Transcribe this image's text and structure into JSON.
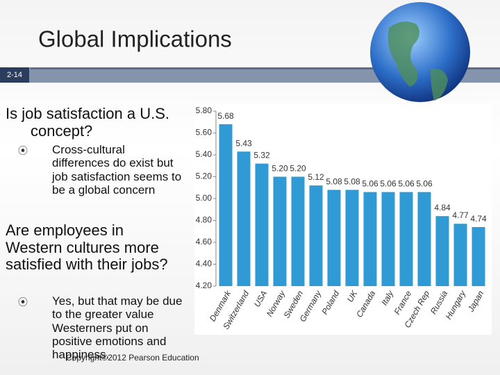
{
  "slide": {
    "title": "Global Implications",
    "number": "2-14",
    "heading_1": "Is job satisfaction a U.S. concept?",
    "bullet_1": "Cross-cultural differences do exist but job satisfaction seems to be a global concern",
    "heading_2": "Are employees in Western cultures more satisfied with their jobs?",
    "bullet_2": "Yes, but that may be due to the greater value Westerners put on positive emotions and happiness.",
    "copyright": "Copyright©2012 Pearson Education"
  },
  "chart_data": {
    "type": "bar",
    "color": "#2f9ad3",
    "categories": [
      "Denmark",
      "Switzerland",
      "USA",
      "Norway",
      "Sweden",
      "Germany",
      "Poland",
      "UK",
      "Canada",
      "Italy",
      "France",
      "Czech Rep",
      "Russia",
      "Hungary",
      "Japan"
    ],
    "values": [
      5.68,
      5.43,
      5.32,
      5.2,
      5.2,
      5.12,
      5.08,
      5.08,
      5.06,
      5.06,
      5.06,
      5.06,
      4.84,
      4.77,
      4.74
    ],
    "value_labels": [
      "5.68",
      "5.43",
      "5.32",
      "5.20",
      "5.20",
      "5.12",
      "5.08",
      "5.08",
      "5.06",
      "5.06",
      "5.06",
      "5.06",
      "4.84",
      "4.77",
      "4.74"
    ],
    "ylim": [
      4.2,
      5.8
    ],
    "yticks": [
      {
        "value": 4.2,
        "label": "4.20"
      },
      {
        "value": 4.4,
        "label": "4.40"
      },
      {
        "value": 4.6,
        "label": "4.60"
      },
      {
        "value": 4.8,
        "label": "4.80"
      },
      {
        "value": 5.0,
        "label": "5.00"
      },
      {
        "value": 5.2,
        "label": "5.20"
      },
      {
        "value": 5.4,
        "label": "5.40"
      },
      {
        "value": 5.6,
        "label": "5.60"
      },
      {
        "value": 5.8,
        "label": "5.80"
      }
    ]
  }
}
